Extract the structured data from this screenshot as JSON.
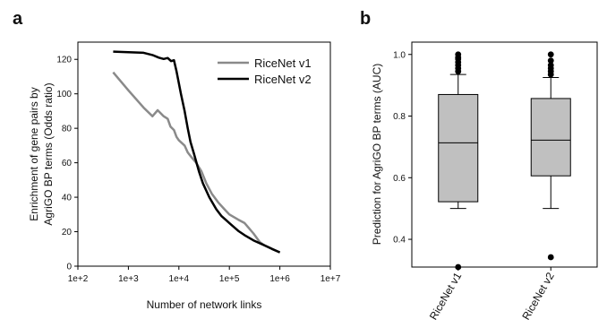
{
  "panels": [
    {
      "letter": "a"
    },
    {
      "letter": "b"
    }
  ],
  "chart_data": [
    {
      "type": "line",
      "panel": "a",
      "title": "",
      "xlabel": "Number of network links",
      "ylabel_lines": [
        "Enrichment of gene pairs by",
        "AgriGO BP terms (Odds ratio)"
      ],
      "x_scale": "log",
      "xlim": [
        100,
        10000000
      ],
      "ylim": [
        0,
        130
      ],
      "x_ticks": [
        100,
        1000,
        10000,
        100000,
        1000000,
        10000000
      ],
      "x_tick_labels": [
        "1e+2",
        "1e+3",
        "1e+4",
        "1e+5",
        "1e+6",
        "1e+7"
      ],
      "y_ticks": [
        0,
        20,
        40,
        60,
        80,
        100,
        120
      ],
      "y_tick_labels": [
        "0",
        "20",
        "40",
        "60",
        "80",
        "100",
        "120"
      ],
      "grid": false,
      "legend_position": "top-right",
      "series": [
        {
          "name": "RiceNet v1",
          "color": "#8a8a8a",
          "points": [
            [
              500,
              112.5
            ],
            [
              1000,
              102
            ],
            [
              2000,
              92
            ],
            [
              3000,
              87
            ],
            [
              3800,
              90.5
            ],
            [
              5000,
              87
            ],
            [
              6000,
              85.5
            ],
            [
              6800,
              81
            ],
            [
              8000,
              79
            ],
            [
              9000,
              75
            ],
            [
              10000,
              73
            ],
            [
              13000,
              70
            ],
            [
              15000,
              66
            ],
            [
              18000,
              63
            ],
            [
              22000,
              60
            ],
            [
              28000,
              55
            ],
            [
              35000,
              48
            ],
            [
              45000,
              42
            ],
            [
              60000,
              37
            ],
            [
              80000,
              33
            ],
            [
              100000,
              30
            ],
            [
              150000,
              27
            ],
            [
              200000,
              25
            ],
            [
              300000,
              19
            ],
            [
              400000,
              14
            ],
            [
              500000,
              12
            ],
            [
              700000,
              10
            ],
            [
              1000000,
              8
            ]
          ]
        },
        {
          "name": "RiceNet v2",
          "color": "#000000",
          "points": [
            [
              500,
              124.5
            ],
            [
              1000,
              124.2
            ],
            [
              2000,
              123.8
            ],
            [
              3000,
              122.5
            ],
            [
              4000,
              121
            ],
            [
              5000,
              120.2
            ],
            [
              6000,
              120.8
            ],
            [
              7000,
              119
            ],
            [
              8000,
              119.5
            ],
            [
              9000,
              113
            ],
            [
              11000,
              100
            ],
            [
              13000,
              90
            ],
            [
              15000,
              80
            ],
            [
              17000,
              72
            ],
            [
              20000,
              65
            ],
            [
              25000,
              55
            ],
            [
              30000,
              48
            ],
            [
              40000,
              40
            ],
            [
              55000,
              33
            ],
            [
              70000,
              29
            ],
            [
              100000,
              25
            ],
            [
              150000,
              20.5
            ],
            [
              200000,
              18
            ],
            [
              300000,
              15
            ],
            [
              500000,
              12
            ],
            [
              700000,
              10
            ],
            [
              1000000,
              8
            ]
          ]
        }
      ]
    },
    {
      "type": "box",
      "panel": "b",
      "title": "",
      "xlabel": "",
      "ylabel": "Prediction for AgriGO BP terms (AUC)",
      "ylim": [
        0.31,
        1.04
      ],
      "y_ticks": [
        0.4,
        0.6,
        0.8,
        1.0
      ],
      "y_tick_labels": [
        "0.4",
        "0.6",
        "0.8",
        "1.0"
      ],
      "categories": [
        "RiceNet v1",
        "RiceNet v2"
      ],
      "box_color": "#c0c0c0",
      "boxes": [
        {
          "whisker_low": 0.5,
          "q1": 0.522,
          "median": 0.713,
          "q3": 0.87,
          "whisker_high": 0.935,
          "outliers": [
            0.31,
            0.945,
            0.955,
            0.965,
            0.975,
            0.985,
            0.99,
            1.0
          ]
        },
        {
          "whisker_low": 0.5,
          "q1": 0.606,
          "median": 0.722,
          "q3": 0.857,
          "whisker_high": 0.925,
          "outliers": [
            0.342,
            0.935,
            0.945,
            0.955,
            0.965,
            0.98,
            1.0
          ]
        }
      ]
    }
  ]
}
